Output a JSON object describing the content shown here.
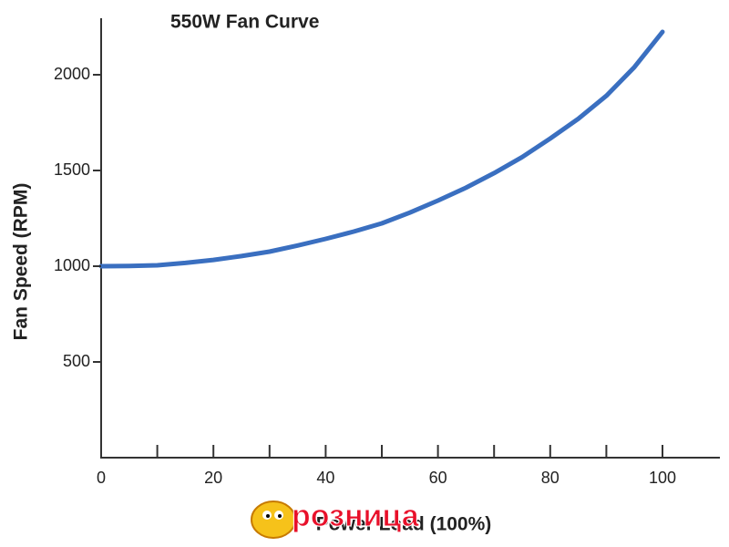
{
  "chart_data": {
    "type": "line",
    "title": "550W Fan Curve",
    "xlabel": "Power Load (100%)",
    "ylabel": "Fan Speed (RPM)",
    "watermark": "розница",
    "x": [
      0,
      5,
      10,
      15,
      20,
      25,
      30,
      35,
      40,
      45,
      50,
      55,
      60,
      65,
      70,
      75,
      80,
      85,
      90,
      95,
      100
    ],
    "values": [
      1000,
      1001,
      1005,
      1017,
      1033,
      1053,
      1076,
      1108,
      1143,
      1181,
      1224,
      1280,
      1343,
      1410,
      1486,
      1570,
      1667,
      1770,
      1890,
      2040,
      2224
    ],
    "color": "#3a6fc0",
    "xlim": [
      0,
      110
    ],
    "xticks": [
      0,
      20,
      40,
      60,
      80,
      100
    ],
    "xminorticks": [
      10,
      30,
      50,
      70,
      90
    ],
    "ylim": [
      0,
      2300
    ],
    "yticks": [
      500,
      1000,
      1500,
      2000
    ],
    "grid": false
  }
}
